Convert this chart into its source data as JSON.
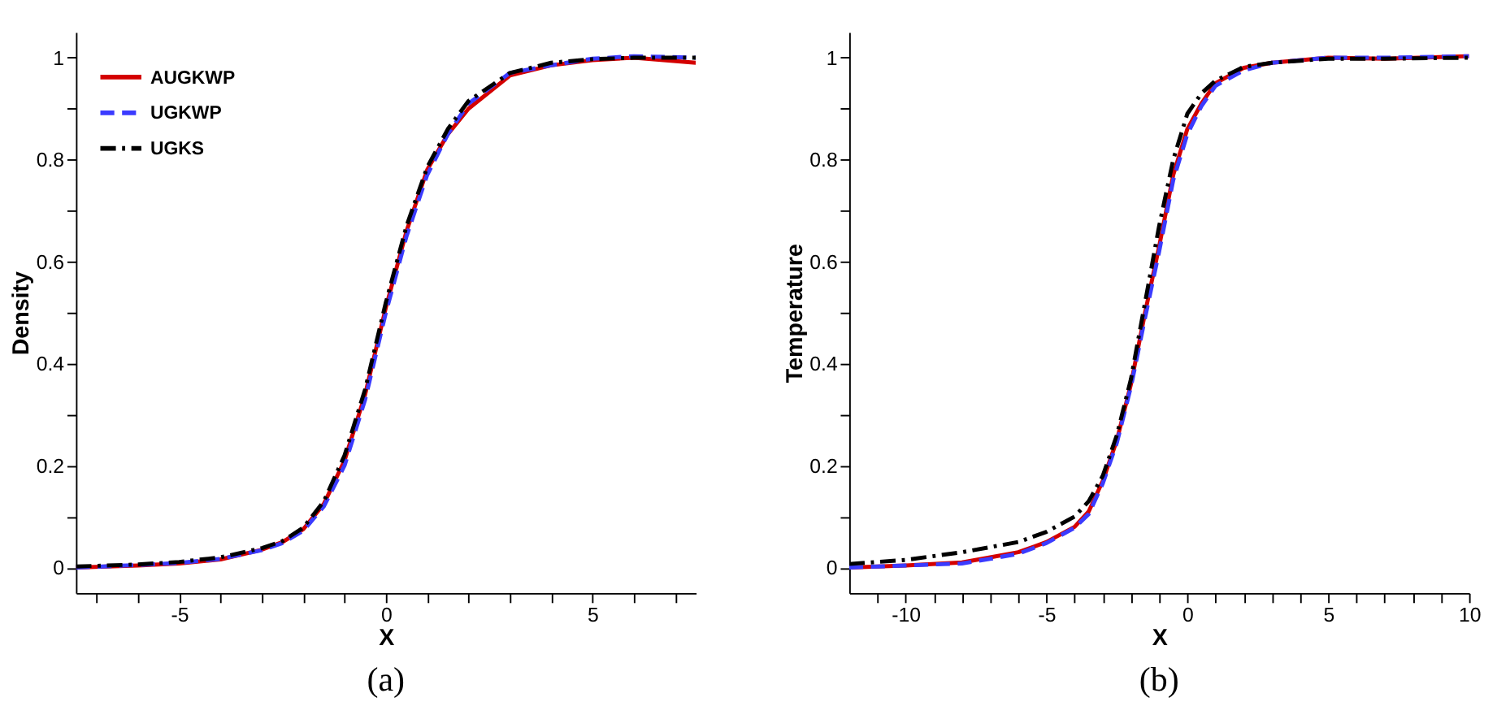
{
  "chart_data": [
    {
      "type": "line",
      "xlabel": "X",
      "ylabel": "Density",
      "annotations": [
        "(a)"
      ],
      "legend": "top left",
      "grid": false,
      "marker": "none",
      "xlim": [
        -7.5,
        7.5
      ],
      "ylim": [
        -0.05,
        1.05
      ],
      "xticks": [
        {
          "value": -7,
          "label": null
        },
        {
          "value": -6,
          "label": null
        },
        -5,
        {
          "value": -4,
          "label": null
        },
        {
          "value": -3,
          "label": null
        },
        {
          "value": -2,
          "label": null
        },
        {
          "value": -1,
          "label": null
        },
        0,
        {
          "value": 1,
          "label": null
        },
        {
          "value": 2,
          "label": null
        },
        {
          "value": 3,
          "label": null
        },
        {
          "value": 4,
          "label": null
        },
        5,
        {
          "value": 6,
          "label": null
        },
        {
          "value": 7,
          "label": null
        }
      ],
      "yticks": [
        0,
        {
          "value": 0.1,
          "label": null
        },
        0.2,
        {
          "value": 0.3,
          "label": null
        },
        0.4,
        {
          "value": 0.5,
          "label": null
        },
        0.6,
        {
          "value": 0.7,
          "label": null
        },
        0.8,
        {
          "value": 0.9,
          "label": null
        },
        1
      ],
      "x": [
        -7.5,
        -6,
        -5,
        -4,
        -3,
        -2.5,
        -2,
        -1.5,
        -1,
        -0.5,
        0,
        0.5,
        1,
        1.5,
        2,
        3,
        4,
        5,
        6,
        7.5
      ],
      "series": [
        {
          "name": "AUGKWP",
          "color": "#d40000",
          "line_style": "solid",
          "values": [
            0.0,
            0.004,
            0.008,
            0.016,
            0.035,
            0.05,
            0.075,
            0.125,
            0.21,
            0.34,
            0.51,
            0.66,
            0.78,
            0.85,
            0.9,
            0.965,
            0.985,
            0.995,
            1.0,
            0.99
          ]
        },
        {
          "name": "UGKWP",
          "color": "#3b3bff",
          "line_style": "dashed",
          "values": [
            0.0,
            0.005,
            0.009,
            0.017,
            0.034,
            0.048,
            0.072,
            0.12,
            0.2,
            0.33,
            0.5,
            0.65,
            0.77,
            0.85,
            0.91,
            0.97,
            0.985,
            0.998,
            1.003,
            1.0
          ]
        },
        {
          "name": "UGKS",
          "color": "#000000",
          "line_style": "dashdot",
          "values": [
            0.002,
            0.006,
            0.011,
            0.02,
            0.038,
            0.052,
            0.078,
            0.13,
            0.22,
            0.35,
            0.52,
            0.67,
            0.785,
            0.86,
            0.915,
            0.97,
            0.99,
            0.997,
            1.0,
            1.0
          ]
        }
      ]
    },
    {
      "type": "line",
      "xlabel": "X",
      "ylabel": "Temperature",
      "annotations": [
        "(b)"
      ],
      "legend": "top left",
      "grid": false,
      "marker": "none",
      "xlim": [
        -12,
        10
      ],
      "ylim": [
        -0.05,
        1.05
      ],
      "xticks": [
        {
          "value": -11,
          "label": null
        },
        -10,
        {
          "value": -9,
          "label": null
        },
        {
          "value": -8,
          "label": null
        },
        {
          "value": -7,
          "label": null
        },
        {
          "value": -6,
          "label": null
        },
        -5,
        {
          "value": -4,
          "label": null
        },
        {
          "value": -3,
          "label": null
        },
        {
          "value": -2,
          "label": null
        },
        {
          "value": -1,
          "label": null
        },
        0,
        {
          "value": 1,
          "label": null
        },
        {
          "value": 2,
          "label": null
        },
        {
          "value": 3,
          "label": null
        },
        {
          "value": 4,
          "label": null
        },
        5,
        {
          "value": 6,
          "label": null
        },
        {
          "value": 7,
          "label": null
        },
        {
          "value": 8,
          "label": null
        },
        {
          "value": 9,
          "label": null
        },
        10
      ],
      "yticks": [
        0,
        {
          "value": 0.1,
          "label": null
        },
        0.2,
        {
          "value": 0.3,
          "label": null
        },
        0.4,
        {
          "value": 0.5,
          "label": null
        },
        0.6,
        {
          "value": 0.7,
          "label": null
        },
        0.8,
        {
          "value": 0.9,
          "label": null
        },
        1
      ],
      "x": [
        -12,
        -10,
        -8,
        -7,
        -6,
        -5,
        -4,
        -3.5,
        -3,
        -2.5,
        -2,
        -1.5,
        -1,
        -0.5,
        0,
        0.5,
        1,
        2,
        3,
        5,
        7,
        10
      ],
      "series": [
        {
          "name": "AUGKWP",
          "color": "#d40000",
          "line_style": "solid",
          "values": [
            0.0,
            0.004,
            0.01,
            0.02,
            0.03,
            0.05,
            0.08,
            0.11,
            0.17,
            0.25,
            0.36,
            0.5,
            0.63,
            0.77,
            0.86,
            0.91,
            0.95,
            0.98,
            0.99,
            1.0,
            0.998,
            1.003
          ]
        },
        {
          "name": "UGKWP",
          "color": "#3b3bff",
          "line_style": "dashed",
          "values": [
            0.0,
            0.004,
            0.008,
            0.017,
            0.027,
            0.048,
            0.078,
            0.105,
            0.165,
            0.245,
            0.355,
            0.49,
            0.62,
            0.76,
            0.85,
            0.905,
            0.945,
            0.975,
            0.99,
            1.0,
            1.0,
            1.003
          ]
        },
        {
          "name": "UGKS",
          "color": "#000000",
          "line_style": "dashdot",
          "values": [
            0.007,
            0.015,
            0.03,
            0.04,
            0.05,
            0.07,
            0.1,
            0.13,
            0.18,
            0.26,
            0.37,
            0.52,
            0.67,
            0.8,
            0.89,
            0.93,
            0.955,
            0.982,
            0.99,
            0.998,
            0.998,
            1.0
          ]
        }
      ]
    }
  ]
}
